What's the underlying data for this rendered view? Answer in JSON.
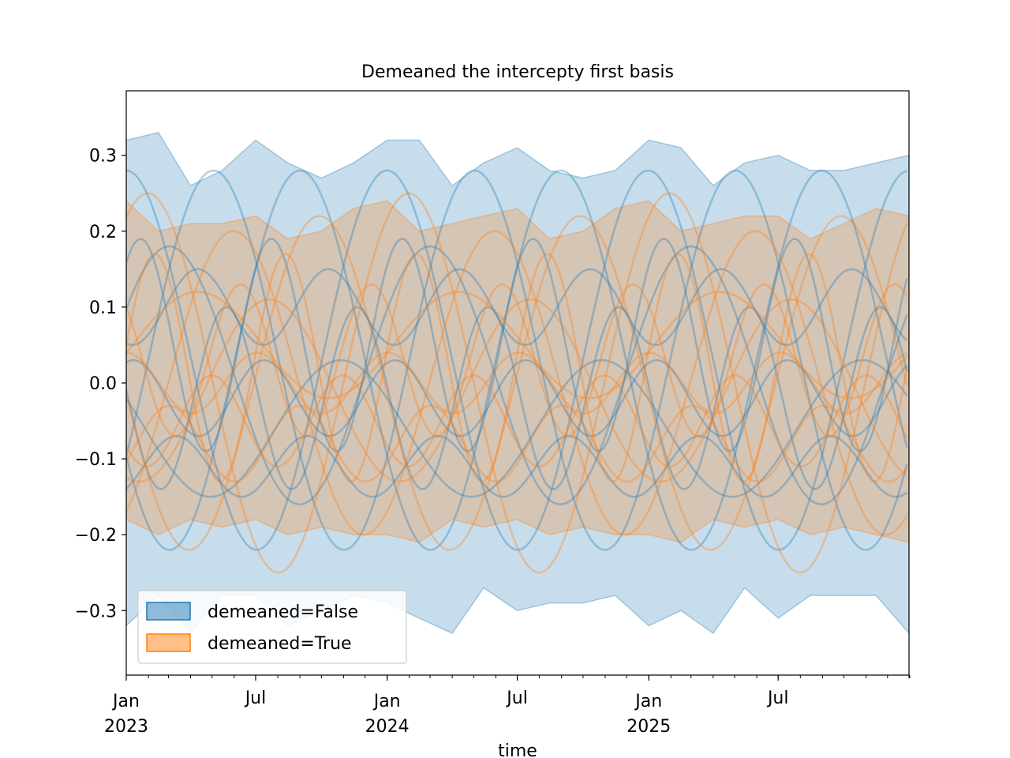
{
  "chart_data": {
    "type": "line",
    "title": "Demeaned the intercepty first basis",
    "xlabel": "time",
    "ylabel": "",
    "x_range": [
      "2023-01-01",
      "2025-12-31"
    ],
    "ylim": [
      -0.385,
      0.385
    ],
    "y_ticks": [
      -0.3,
      -0.2,
      -0.1,
      0.0,
      0.1,
      0.2,
      0.3
    ],
    "y_tick_labels": [
      "−0.3",
      "−0.2",
      "−0.1",
      "0.0",
      "0.1",
      "0.2",
      "0.3"
    ],
    "x_major_ticks": [
      {
        "date": "2023-01-01",
        "label": "Jan",
        "sublabel": "2023"
      },
      {
        "date": "2023-07-01",
        "label": "Jul",
        "sublabel": ""
      },
      {
        "date": "2024-01-01",
        "label": "Jan",
        "sublabel": "2024"
      },
      {
        "date": "2024-07-01",
        "label": "Jul",
        "sublabel": ""
      },
      {
        "date": "2025-01-01",
        "label": "Jan",
        "sublabel": "2025"
      },
      {
        "date": "2025-07-01",
        "label": "Jul",
        "sublabel": ""
      }
    ],
    "grid": false,
    "legend_position": "lower-left",
    "colors": {
      "demeaned_false": "#1f77b4",
      "demeaned_true": "#ff7f0e"
    },
    "bands": [
      {
        "name": "demeaned=False",
        "color": "#1f77b4",
        "x": [
          "2023-01-01",
          "2023-02-15",
          "2023-04-01",
          "2023-05-15",
          "2023-07-01",
          "2023-08-15",
          "2023-10-01",
          "2023-11-15",
          "2024-01-01",
          "2024-02-15",
          "2024-04-01",
          "2024-05-15",
          "2024-07-01",
          "2024-08-15",
          "2024-10-01",
          "2024-11-15",
          "2025-01-01",
          "2025-02-15",
          "2025-04-01",
          "2025-05-15",
          "2025-07-01",
          "2025-08-15",
          "2025-10-01",
          "2025-11-15",
          "2025-12-31"
        ],
        "upper": [
          0.32,
          0.33,
          0.26,
          0.28,
          0.32,
          0.29,
          0.27,
          0.29,
          0.32,
          0.32,
          0.26,
          0.29,
          0.31,
          0.28,
          0.27,
          0.28,
          0.32,
          0.31,
          0.26,
          0.29,
          0.3,
          0.28,
          0.28,
          0.29,
          0.3
        ],
        "lower": [
          -0.32,
          -0.28,
          -0.33,
          -0.28,
          -0.28,
          -0.32,
          -0.3,
          -0.28,
          -0.29,
          -0.31,
          -0.33,
          -0.27,
          -0.3,
          -0.29,
          -0.29,
          -0.28,
          -0.32,
          -0.3,
          -0.33,
          -0.27,
          -0.31,
          -0.28,
          -0.28,
          -0.28,
          -0.33
        ]
      },
      {
        "name": "demeaned=True",
        "color": "#ff7f0e",
        "x": [
          "2023-01-01",
          "2023-02-15",
          "2023-04-01",
          "2023-05-15",
          "2023-07-01",
          "2023-08-15",
          "2023-10-01",
          "2023-11-15",
          "2024-01-01",
          "2024-02-15",
          "2024-04-01",
          "2024-05-15",
          "2024-07-01",
          "2024-08-15",
          "2024-10-01",
          "2024-11-15",
          "2025-01-01",
          "2025-02-15",
          "2025-04-01",
          "2025-05-15",
          "2025-07-01",
          "2025-08-15",
          "2025-10-01",
          "2025-11-15",
          "2025-12-31"
        ],
        "upper": [
          0.24,
          0.2,
          0.21,
          0.21,
          0.22,
          0.19,
          0.2,
          0.23,
          0.24,
          0.2,
          0.21,
          0.22,
          0.23,
          0.19,
          0.2,
          0.23,
          0.24,
          0.2,
          0.21,
          0.22,
          0.22,
          0.19,
          0.21,
          0.23,
          0.22
        ],
        "lower": [
          -0.18,
          -0.2,
          -0.18,
          -0.19,
          -0.18,
          -0.2,
          -0.19,
          -0.2,
          -0.2,
          -0.21,
          -0.18,
          -0.19,
          -0.18,
          -0.2,
          -0.19,
          -0.2,
          -0.2,
          -0.21,
          -0.18,
          -0.19,
          -0.18,
          -0.2,
          -0.19,
          -0.2,
          -0.21
        ]
      }
    ],
    "blue_curves": [
      {
        "offset": 0.03,
        "amplitude": 0.25,
        "period_days": 365,
        "phase_days": 0
      },
      {
        "offset": 0.03,
        "amplitude": 0.25,
        "period_days": 365,
        "phase_days": 122
      },
      {
        "offset": 0.03,
        "amplitude": 0.25,
        "period_days": 365,
        "phase_days": 243
      },
      {
        "offset": 0.05,
        "amplitude": 0.14,
        "period_days": 183,
        "phase_days": 20
      },
      {
        "offset": 0.01,
        "amplitude": 0.17,
        "period_days": 365,
        "phase_days": 60
      },
      {
        "offset": -0.02,
        "amplitude": 0.12,
        "period_days": 183,
        "phase_days": 140
      },
      {
        "offset": -0.06,
        "amplitude": 0.09,
        "period_days": 365,
        "phase_days": 300
      },
      {
        "offset": -0.11,
        "amplitude": 0.04,
        "period_days": 183,
        "phase_days": 70
      },
      {
        "offset": 0.1,
        "amplitude": 0.05,
        "period_days": 183,
        "phase_days": 100
      },
      {
        "offset": -0.02,
        "amplitude": 0.05,
        "period_days": 183,
        "phase_days": 10
      }
    ],
    "orange_curves": [
      {
        "offset": 0.0,
        "amplitude": 0.25,
        "period_days": 365,
        "phase_days": 30
      },
      {
        "offset": 0.0,
        "amplitude": 0.2,
        "period_days": 365,
        "phase_days": 150
      },
      {
        "offset": 0.0,
        "amplitude": 0.22,
        "period_days": 365,
        "phase_days": 270
      },
      {
        "offset": 0.02,
        "amplitude": 0.15,
        "period_days": 183,
        "phase_days": 40
      },
      {
        "offset": -0.01,
        "amplitude": 0.12,
        "period_days": 365,
        "phase_days": 200
      },
      {
        "offset": -0.05,
        "amplitude": 0.06,
        "period_days": 183,
        "phase_days": 120
      },
      {
        "offset": 0.0,
        "amplitude": 0.04,
        "period_days": 183,
        "phase_days": 0
      },
      {
        "offset": 0.05,
        "amplitude": 0.07,
        "period_days": 365,
        "phase_days": 100
      },
      {
        "offset": -0.08,
        "amplitude": 0.05,
        "period_days": 183,
        "phase_days": 60
      },
      {
        "offset": 0.03,
        "amplitude": 0.1,
        "period_days": 183,
        "phase_days": 160
      }
    ],
    "legend": [
      {
        "label": "demeaned=False",
        "color": "#1f77b4"
      },
      {
        "label": "demeaned=True",
        "color": "#ff7f0e"
      }
    ]
  }
}
